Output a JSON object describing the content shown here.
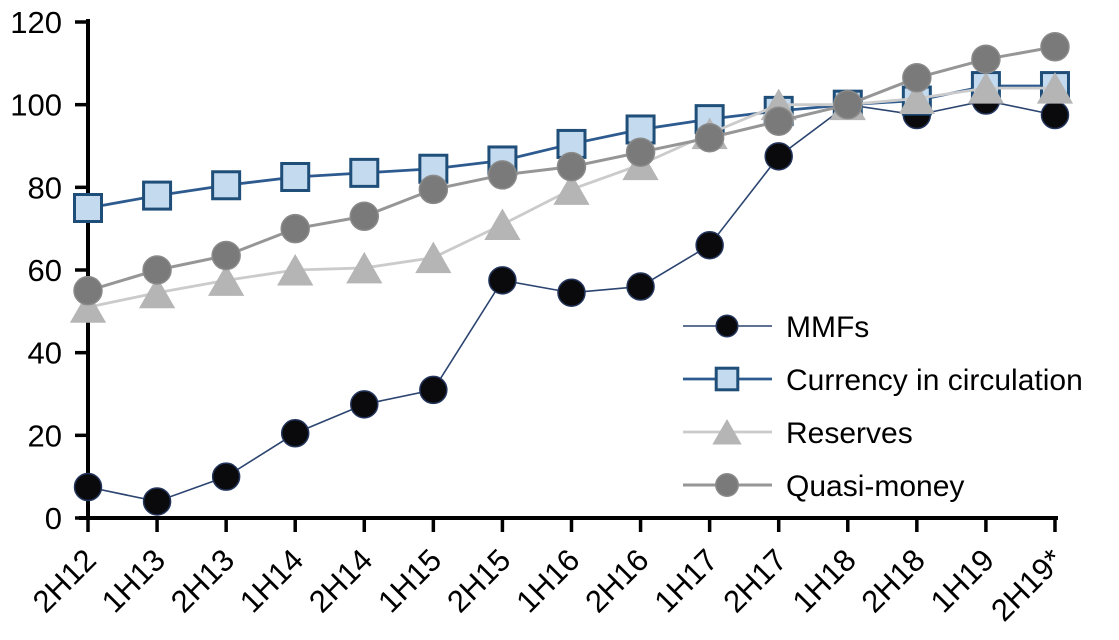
{
  "chart_data": {
    "type": "line",
    "title": "",
    "xlabel": "",
    "ylabel": "",
    "grid": false,
    "legend_position": "inside-right",
    "ylim": [
      0,
      120
    ],
    "y_ticks": [
      0,
      20,
      40,
      60,
      80,
      100,
      120
    ],
    "categories": [
      "2H12",
      "1H13",
      "2H13",
      "1H14",
      "2H14",
      "1H15",
      "2H15",
      "1H16",
      "2H16",
      "1H17",
      "2H17",
      "1H18",
      "2H18",
      "1H19",
      "2H19*"
    ],
    "series": [
      {
        "name": "MMFs",
        "marker": "circle",
        "marker_size": 27,
        "marker_fill": "#0a0a0c",
        "marker_stroke": "#24355c",
        "line_color": "#2b4470",
        "line_width": 1.6,
        "values": [
          7.5,
          4,
          10,
          20.5,
          27.5,
          31,
          57.5,
          54.5,
          56,
          66,
          87.5,
          100,
          97.5,
          101,
          97.5
        ]
      },
      {
        "name": "Currency in circulation",
        "marker": "square",
        "marker_size": 27,
        "marker_fill": "#c3daef",
        "marker_stroke": "#1f4e79",
        "line_color": "#2e5b8f",
        "line_width": 2.8,
        "values": [
          75,
          78,
          80.5,
          82.5,
          83.5,
          84.5,
          86.5,
          90.5,
          94,
          96.5,
          98.5,
          100,
          101,
          104.5,
          104.5
        ]
      },
      {
        "name": "Reserves",
        "marker": "triangle",
        "marker_size": 30,
        "marker_fill": "#b5b5b5",
        "marker_stroke": "#b5b5b5",
        "line_color": "#cbcbcb",
        "line_width": 2.8,
        "values": [
          51,
          54.5,
          57.5,
          60,
          60.5,
          63,
          71,
          79.5,
          85.5,
          93,
          100,
          100,
          101.5,
          104,
          104
        ]
      },
      {
        "name": "Quasi-money",
        "marker": "circle",
        "marker_size": 28,
        "marker_fill": "#7a7a7a",
        "marker_stroke": "#8a8a8a",
        "line_color": "#969696",
        "line_width": 3,
        "values": [
          55,
          60,
          63.5,
          70,
          73,
          79.5,
          83,
          85,
          88.5,
          92,
          96,
          100,
          106.5,
          111,
          114
        ]
      }
    ],
    "axis_color": "#000000"
  }
}
